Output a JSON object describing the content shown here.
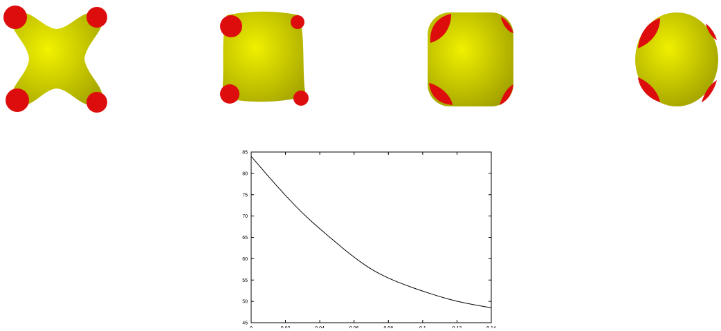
{
  "figure": {
    "colors": {
      "body": "#e6e600",
      "body_shade": "#b8b800",
      "tips": "#dd0d0d",
      "outline": "#000000"
    },
    "shapes": [
      {
        "stage": 1,
        "description_name": "four-lobed-cross-shape"
      },
      {
        "stage": 2,
        "description_name": "rounded-concave-square-shape"
      },
      {
        "stage": 3,
        "description_name": "rounded-square-shape"
      },
      {
        "stage": 4,
        "description_name": "near-spherical-shape"
      }
    ]
  },
  "chart_data": {
    "type": "line",
    "title": "",
    "xlabel": "",
    "ylabel": "",
    "xlim": [
      0,
      0.14
    ],
    "ylim": [
      45,
      85
    ],
    "x_ticks": [
      0,
      0.02,
      0.04,
      0.06,
      0.08,
      0.1,
      0.12,
      0.14
    ],
    "x_tick_labels": [
      "0",
      "0.02",
      "0.04",
      "0.06",
      "0.08",
      "0.1",
      "0.12",
      "0.14"
    ],
    "y_ticks": [
      45,
      50,
      55,
      60,
      65,
      70,
      75,
      80,
      85
    ],
    "y_tick_labels": [
      "45",
      "50",
      "55",
      "60",
      "65",
      "70",
      "75",
      "80",
      "85"
    ],
    "grid": false,
    "series": [
      {
        "color": "#000000",
        "x": [
          0,
          0.01,
          0.02,
          0.03,
          0.04,
          0.05,
          0.06,
          0.07,
          0.08,
          0.09,
          0.1,
          0.11,
          0.12,
          0.13,
          0.14
        ],
        "y": [
          84,
          79.3,
          74.8,
          70.6,
          67.0,
          63.6,
          60.3,
          57.5,
          55.4,
          53.8,
          52.4,
          51.1,
          50.0,
          49.2,
          48.5
        ]
      }
    ]
  }
}
